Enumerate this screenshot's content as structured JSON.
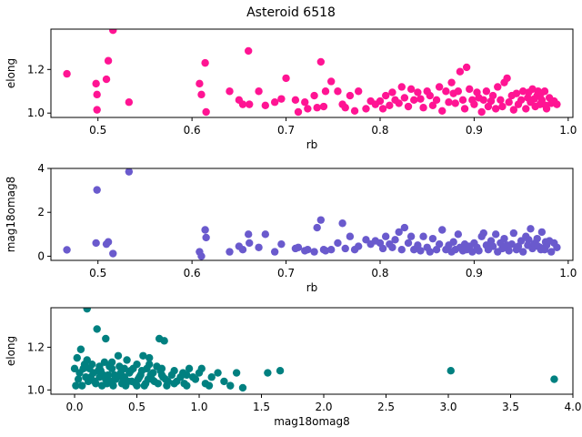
{
  "figure": {
    "title": "Asteroid 6518"
  },
  "chart_data": [
    {
      "type": "scatter",
      "xlabel": "rb",
      "ylabel": "elong",
      "xlim": [
        0.45,
        1.005
      ],
      "ylim": [
        0.98,
        1.385
      ],
      "xticks": [
        0.5,
        0.6,
        0.7,
        0.8,
        0.9,
        1.0
      ],
      "xtick_labels": [
        "0.5",
        "0.6",
        "0.7",
        "0.8",
        "0.9",
        "1.0"
      ],
      "yticks": [
        1.0,
        1.2
      ],
      "ytick_labels": [
        "1.0",
        "1.2"
      ],
      "color": "#ff1493",
      "points": [
        [
          0.467,
          1.18
        ],
        [
          0.498,
          1.135
        ],
        [
          0.499,
          1.085
        ],
        [
          0.499,
          1.015
        ],
        [
          0.509,
          1.155
        ],
        [
          0.511,
          1.24
        ],
        [
          0.516,
          1.38
        ],
        [
          0.533,
          1.05
        ],
        [
          0.608,
          1.135
        ],
        [
          0.61,
          1.085
        ],
        [
          0.614,
          1.23
        ],
        [
          0.615,
          1.005
        ],
        [
          0.64,
          1.1
        ],
        [
          0.65,
          1.06
        ],
        [
          0.654,
          1.04
        ],
        [
          0.66,
          1.285
        ],
        [
          0.661,
          1.04
        ],
        [
          0.671,
          1.1
        ],
        [
          0.678,
          1.035
        ],
        [
          0.688,
          1.05
        ],
        [
          0.695,
          1.065
        ],
        [
          0.7,
          1.16
        ],
        [
          0.71,
          1.06
        ],
        [
          0.713,
          1.005
        ],
        [
          0.72,
          1.05
        ],
        [
          0.723,
          1.02
        ],
        [
          0.73,
          1.08
        ],
        [
          0.733,
          1.025
        ],
        [
          0.737,
          1.235
        ],
        [
          0.74,
          1.03
        ],
        [
          0.742,
          1.1
        ],
        [
          0.748,
          1.145
        ],
        [
          0.755,
          1.1
        ],
        [
          0.76,
          1.04
        ],
        [
          0.763,
          1.025
        ],
        [
          0.768,
          1.08
        ],
        [
          0.773,
          1.01
        ],
        [
          0.777,
          1.1
        ],
        [
          0.785,
          1.02
        ],
        [
          0.79,
          1.055
        ],
        [
          0.795,
          1.04
        ],
        [
          0.8,
          1.055
        ],
        [
          0.803,
          1.02
        ],
        [
          0.806,
          1.08
        ],
        [
          0.81,
          1.035
        ],
        [
          0.813,
          1.095
        ],
        [
          0.816,
          1.06
        ],
        [
          0.82,
          1.045
        ],
        [
          0.823,
          1.12
        ],
        [
          0.826,
          1.07
        ],
        [
          0.83,
          1.03
        ],
        [
          0.833,
          1.11
        ],
        [
          0.836,
          1.06
        ],
        [
          0.84,
          1.095
        ],
        [
          0.843,
          1.065
        ],
        [
          0.846,
          1.025
        ],
        [
          0.85,
          1.1
        ],
        [
          0.853,
          1.08
        ],
        [
          0.856,
          1.035
        ],
        [
          0.86,
          1.06
        ],
        [
          0.863,
          1.12
        ],
        [
          0.866,
          1.01
        ],
        [
          0.87,
          1.1
        ],
        [
          0.873,
          1.05
        ],
        [
          0.876,
          1.14
        ],
        [
          0.878,
          1.09
        ],
        [
          0.88,
          1.045
        ],
        [
          0.883,
          1.1
        ],
        [
          0.885,
          1.19
        ],
        [
          0.888,
          1.06
        ],
        [
          0.89,
          1.02
        ],
        [
          0.892,
          1.21
        ],
        [
          0.895,
          1.11
        ],
        [
          0.898,
          1.06
        ],
        [
          0.9,
          1.04
        ],
        [
          0.903,
          1.095
        ],
        [
          0.905,
          1.07
        ],
        [
          0.908,
          1.005
        ],
        [
          0.91,
          1.06
        ],
        [
          0.913,
          1.1
        ],
        [
          0.915,
          1.03
        ],
        [
          0.918,
          1.055
        ],
        [
          0.92,
          1.08
        ],
        [
          0.923,
          1.02
        ],
        [
          0.925,
          1.12
        ],
        [
          0.928,
          1.06
        ],
        [
          0.93,
          1.03
        ],
        [
          0.932,
          1.14
        ],
        [
          0.935,
          1.16
        ],
        [
          0.937,
          1.05
        ],
        [
          0.94,
          1.08
        ],
        [
          0.942,
          1.015
        ],
        [
          0.945,
          1.09
        ],
        [
          0.947,
          1.04
        ],
        [
          0.95,
          1.06
        ],
        [
          0.952,
          1.1
        ],
        [
          0.955,
          1.02
        ],
        [
          0.957,
          1.07
        ],
        [
          0.96,
          1.05
        ],
        [
          0.962,
          1.11
        ],
        [
          0.965,
          1.03
        ],
        [
          0.967,
          1.08
        ],
        [
          0.97,
          1.04
        ],
        [
          0.972,
          1.06
        ],
        [
          0.975,
          1.1
        ],
        [
          0.977,
          1.02
        ],
        [
          0.98,
          1.07
        ],
        [
          0.982,
          1.045
        ],
        [
          0.985,
          1.055
        ],
        [
          0.988,
          1.04
        ],
        [
          0.958,
          1.095
        ],
        [
          0.964,
          1.065
        ],
        [
          0.971,
          1.09
        ],
        [
          0.976,
          1.035
        ],
        [
          0.968,
          1.1
        ]
      ]
    },
    {
      "type": "scatter",
      "xlabel": "rb",
      "ylabel": "mag18omag8",
      "xlim": [
        0.45,
        1.005
      ],
      "ylim": [
        -0.19,
        4.0
      ],
      "xticks": [
        0.5,
        0.6,
        0.7,
        0.8,
        0.9,
        1.0
      ],
      "xtick_labels": [
        "0.5",
        "0.6",
        "0.7",
        "0.8",
        "0.9",
        "1.0"
      ],
      "yticks": [
        0,
        2,
        4
      ],
      "ytick_labels": [
        "0",
        "2",
        "4"
      ],
      "color": "#6a5acd",
      "points": [
        [
          0.467,
          0.29
        ],
        [
          0.498,
          0.6
        ],
        [
          0.499,
          3.02
        ],
        [
          0.509,
          0.55
        ],
        [
          0.511,
          0.65
        ],
        [
          0.516,
          0.12
        ],
        [
          0.533,
          3.85
        ],
        [
          0.608,
          0.2
        ],
        [
          0.61,
          0.0
        ],
        [
          0.614,
          1.2
        ],
        [
          0.615,
          0.85
        ],
        [
          0.64,
          0.2
        ],
        [
          0.65,
          0.45
        ],
        [
          0.654,
          0.3
        ],
        [
          0.66,
          1.0
        ],
        [
          0.661,
          0.6
        ],
        [
          0.671,
          0.4
        ],
        [
          0.678,
          1.0
        ],
        [
          0.688,
          0.2
        ],
        [
          0.695,
          0.55
        ],
        [
          0.71,
          0.35
        ],
        [
          0.713,
          0.4
        ],
        [
          0.72,
          0.25
        ],
        [
          0.723,
          0.3
        ],
        [
          0.73,
          0.2
        ],
        [
          0.733,
          1.3
        ],
        [
          0.737,
          1.65
        ],
        [
          0.74,
          0.3
        ],
        [
          0.742,
          0.25
        ],
        [
          0.748,
          0.3
        ],
        [
          0.755,
          0.6
        ],
        [
          0.76,
          1.5
        ],
        [
          0.763,
          0.35
        ],
        [
          0.768,
          0.9
        ],
        [
          0.773,
          0.3
        ],
        [
          0.777,
          0.45
        ],
        [
          0.785,
          0.75
        ],
        [
          0.79,
          0.55
        ],
        [
          0.795,
          0.7
        ],
        [
          0.8,
          0.6
        ],
        [
          0.803,
          0.35
        ],
        [
          0.806,
          0.9
        ],
        [
          0.81,
          0.55
        ],
        [
          0.813,
          0.4
        ],
        [
          0.816,
          0.75
        ],
        [
          0.82,
          1.1
        ],
        [
          0.823,
          0.3
        ],
        [
          0.826,
          1.3
        ],
        [
          0.83,
          0.6
        ],
        [
          0.833,
          0.9
        ],
        [
          0.836,
          0.3
        ],
        [
          0.84,
          0.5
        ],
        [
          0.843,
          0.25
        ],
        [
          0.846,
          0.9
        ],
        [
          0.85,
          0.4
        ],
        [
          0.853,
          0.2
        ],
        [
          0.856,
          0.8
        ],
        [
          0.86,
          0.3
        ],
        [
          0.863,
          0.55
        ],
        [
          0.866,
          1.2
        ],
        [
          0.87,
          0.3
        ],
        [
          0.873,
          0.5
        ],
        [
          0.876,
          0.2
        ],
        [
          0.878,
          0.65
        ],
        [
          0.88,
          0.3
        ],
        [
          0.883,
          1.0
        ],
        [
          0.885,
          0.4
        ],
        [
          0.888,
          0.25
        ],
        [
          0.89,
          0.55
        ],
        [
          0.892,
          0.3
        ],
        [
          0.895,
          0.45
        ],
        [
          0.898,
          0.2
        ],
        [
          0.9,
          0.6
        ],
        [
          0.903,
          0.4
        ],
        [
          0.905,
          0.25
        ],
        [
          0.908,
          0.9
        ],
        [
          0.91,
          1.05
        ],
        [
          0.913,
          0.5
        ],
        [
          0.915,
          0.3
        ],
        [
          0.918,
          0.7
        ],
        [
          0.92,
          0.45
        ],
        [
          0.923,
          1.0
        ],
        [
          0.925,
          0.2
        ],
        [
          0.928,
          0.6
        ],
        [
          0.93,
          0.35
        ],
        [
          0.932,
          0.8
        ],
        [
          0.935,
          0.5
        ],
        [
          0.937,
          0.25
        ],
        [
          0.94,
          0.55
        ],
        [
          0.942,
          1.05
        ],
        [
          0.945,
          0.3
        ],
        [
          0.947,
          0.45
        ],
        [
          0.95,
          0.7
        ],
        [
          0.952,
          0.2
        ],
        [
          0.955,
          0.9
        ],
        [
          0.957,
          0.5
        ],
        [
          0.96,
          1.25
        ],
        [
          0.962,
          0.35
        ],
        [
          0.965,
          0.6
        ],
        [
          0.967,
          0.8
        ],
        [
          0.97,
          0.4
        ],
        [
          0.972,
          1.1
        ],
        [
          0.975,
          0.3
        ],
        [
          0.977,
          0.5
        ],
        [
          0.98,
          0.7
        ],
        [
          0.982,
          0.2
        ],
        [
          0.985,
          0.6
        ],
        [
          0.988,
          0.4
        ],
        [
          0.958,
          0.75
        ],
        [
          0.964,
          0.55
        ],
        [
          0.971,
          0.3
        ],
        [
          0.976,
          0.65
        ],
        [
          0.968,
          0.45
        ]
      ]
    },
    {
      "type": "scatter",
      "xlabel": "mag18omag8",
      "ylabel": "elong",
      "xlim": [
        -0.19,
        4.0
      ],
      "ylim": [
        0.98,
        1.385
      ],
      "xticks": [
        0.0,
        0.5,
        1.0,
        1.5,
        2.0,
        2.5,
        3.0,
        3.5,
        4.0
      ],
      "xtick_labels": [
        "0.0",
        "0.5",
        "1.0",
        "1.5",
        "2.0",
        "2.5",
        "3.0",
        "3.5",
        "4.0"
      ],
      "yticks": [
        1.0,
        1.2
      ],
      "ytick_labels": [
        "1.0",
        "1.2"
      ],
      "color": "#008080",
      "points": [
        [
          0.1,
          1.38
        ],
        [
          0.18,
          1.285
        ],
        [
          0.25,
          1.24
        ],
        [
          0.05,
          1.19
        ],
        [
          0.35,
          1.16
        ],
        [
          0.55,
          1.16
        ],
        [
          0.68,
          1.24
        ],
        [
          0.72,
          1.23
        ],
        [
          0.6,
          1.15
        ],
        [
          0.42,
          1.14
        ],
        [
          0.02,
          1.15
        ],
        [
          0.08,
          1.12
        ],
        [
          0.12,
          1.1
        ],
        [
          0.15,
          1.08
        ],
        [
          0.2,
          1.06
        ],
        [
          0.25,
          1.05
        ],
        [
          0.3,
          1.1
        ],
        [
          0.32,
          1.07
        ],
        [
          0.38,
          1.03
        ],
        [
          0.45,
          1.09
        ],
        [
          0.5,
          1.12
        ],
        [
          0.52,
          1.06
        ],
        [
          0.58,
          1.1
        ],
        [
          0.62,
          1.05
        ],
        [
          0.66,
          1.11
        ],
        [
          0.7,
          1.07
        ],
        [
          0.75,
          1.04
        ],
        [
          0.8,
          1.09
        ],
        [
          0.85,
          1.06
        ],
        [
          0.9,
          1.02
        ],
        [
          0.92,
          1.1
        ],
        [
          0.95,
          1.06
        ],
        [
          1.0,
          1.08
        ],
        [
          1.05,
          1.03
        ],
        [
          1.1,
          1.06
        ],
        [
          1.15,
          1.08
        ],
        [
          1.2,
          1.04
        ],
        [
          1.25,
          1.02
        ],
        [
          1.3,
          1.08
        ],
        [
          1.35,
          1.01
        ],
        [
          1.55,
          1.08
        ],
        [
          1.65,
          1.09
        ],
        [
          3.02,
          1.09
        ],
        [
          3.85,
          1.05
        ],
        [
          0.0,
          1.1
        ],
        [
          0.03,
          1.05
        ],
        [
          0.06,
          1.02
        ],
        [
          0.09,
          1.06
        ],
        [
          0.11,
          1.04
        ],
        [
          0.14,
          1.12
        ],
        [
          0.17,
          1.03
        ],
        [
          0.19,
          1.09
        ],
        [
          0.22,
          1.02
        ],
        [
          0.24,
          1.13
        ],
        [
          0.27,
          1.07
        ],
        [
          0.29,
          1.04
        ],
        [
          0.31,
          1.02
        ],
        [
          0.34,
          1.06
        ],
        [
          0.36,
          1.11
        ],
        [
          0.39,
          1.05
        ],
        [
          0.41,
          1.02
        ],
        [
          0.44,
          1.08
        ],
        [
          0.46,
          1.04
        ],
        [
          0.49,
          1.03
        ],
        [
          0.53,
          1.07
        ],
        [
          0.56,
          1.02
        ],
        [
          0.59,
          1.05
        ],
        [
          0.63,
          1.08
        ],
        [
          0.67,
          1.03
        ],
        [
          0.71,
          1.06
        ],
        [
          0.74,
          1.02
        ],
        [
          0.78,
          1.07
        ],
        [
          0.82,
          1.04
        ],
        [
          0.87,
          1.08
        ],
        [
          0.88,
          1.03
        ],
        [
          0.97,
          1.05
        ],
        [
          1.02,
          1.1
        ],
        [
          1.08,
          1.02
        ],
        [
          0.04,
          1.08
        ],
        [
          0.07,
          1.1
        ],
        [
          0.13,
          1.06
        ],
        [
          0.16,
          1.04
        ],
        [
          0.21,
          1.09
        ],
        [
          0.23,
          1.07
        ],
        [
          0.26,
          1.03
        ],
        [
          0.28,
          1.11
        ],
        [
          0.33,
          1.05
        ],
        [
          0.37,
          1.08
        ],
        [
          0.4,
          1.06
        ],
        [
          0.43,
          1.04
        ],
        [
          0.47,
          1.1
        ],
        [
          0.51,
          1.05
        ],
        [
          0.54,
          1.09
        ],
        [
          0.57,
          1.03
        ],
        [
          0.61,
          1.07
        ],
        [
          0.64,
          1.04
        ],
        [
          0.69,
          1.09
        ],
        [
          0.73,
          1.05
        ],
        [
          0.01,
          1.02
        ],
        [
          0.1,
          1.14
        ],
        [
          0.2,
          1.11
        ],
        [
          0.3,
          1.13
        ],
        [
          0.4,
          1.1
        ],
        [
          0.5,
          1.02
        ],
        [
          0.6,
          1.12
        ],
        [
          0.7,
          1.1
        ],
        [
          0.8,
          1.03
        ],
        [
          0.9,
          1.07
        ]
      ]
    }
  ]
}
